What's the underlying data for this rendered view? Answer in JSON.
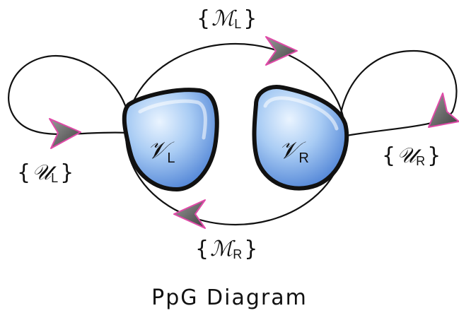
{
  "title": "PpG Diagram",
  "nodes": {
    "left": {
      "symbol": "𝒱",
      "subscript": "L"
    },
    "right": {
      "symbol": "𝒱",
      "subscript": "R"
    }
  },
  "edges": {
    "top": {
      "open": "{",
      "symbol": "ℳ",
      "subscript": "L",
      "close": "}"
    },
    "bottom": {
      "open": "{",
      "symbol": "ℳ",
      "subscript": "R",
      "close": "}"
    },
    "left_loop": {
      "open": "{",
      "symbol": "𝒰",
      "subscript": "L",
      "close": "}"
    },
    "right_loop": {
      "open": "{",
      "symbol": "𝒰",
      "subscript": "R",
      "close": "}"
    }
  },
  "colors": {
    "node_fill_light": "#dfeeff",
    "node_fill_dark": "#4f86d8",
    "node_outline": "#111111",
    "edge": "#111111",
    "arrow_fill": "#6a6a6a",
    "arrow_edge": "#e04aa8"
  }
}
